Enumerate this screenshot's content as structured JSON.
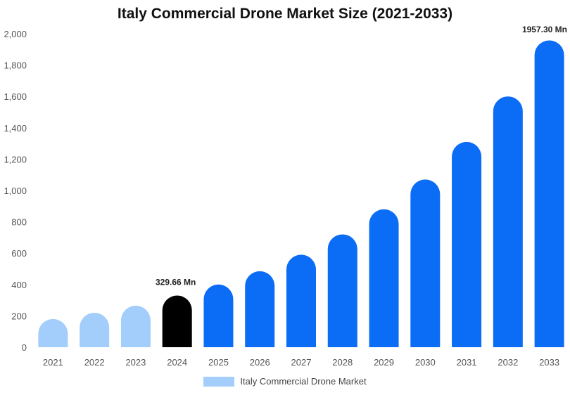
{
  "chart_data": {
    "type": "bar",
    "title": "Italy Commercial Drone Market Size (2021-2033)",
    "categories": [
      "2021",
      "2022",
      "2023",
      "2024",
      "2025",
      "2026",
      "2027",
      "2028",
      "2029",
      "2030",
      "2031",
      "2032",
      "2033"
    ],
    "series": [
      {
        "name": "Italy Commercial Drone Market",
        "values": [
          180,
          220,
          265,
          329.66,
          400,
          485,
          590,
          720,
          880,
          1070,
          1310,
          1600,
          1957.3
        ]
      }
    ],
    "ylim": [
      0,
      2000
    ],
    "yticks": [
      0,
      200,
      400,
      600,
      800,
      1000,
      1200,
      1400,
      1600,
      1800,
      2000
    ],
    "ytick_labels": [
      "0",
      "200",
      "400",
      "600",
      "800",
      "1,000",
      "1,200",
      "1,400",
      "1,600",
      "1,800",
      "2,000"
    ],
    "annotations": [
      {
        "category": "2024",
        "text": "329.66 Mn"
      },
      {
        "category": "2033",
        "text": "1957.30 Mn"
      }
    ],
    "bar_colors": {
      "historical": "#a3cdfb",
      "base_year": "#000000",
      "forecast": "#0b6cf6"
    },
    "grid": false,
    "legend_position": "bottom"
  }
}
